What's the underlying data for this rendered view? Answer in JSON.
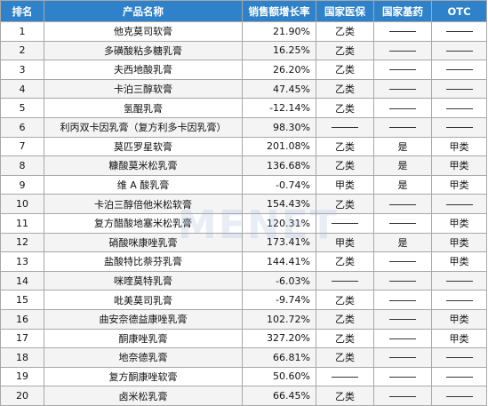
{
  "headers": [
    "排名",
    "产品名称",
    "销售额增长率",
    "国家医保",
    "国家基药",
    "OTC"
  ],
  "rows": [
    {
      "rank": "1",
      "name": "他克莫司软膏",
      "growth": "21.90%",
      "insurance": "乙类",
      "essential": "",
      "otc": ""
    },
    {
      "rank": "2",
      "name": "多磺酸粘多糖乳膏",
      "growth": "16.25%",
      "insurance": "乙类",
      "essential": "",
      "otc": ""
    },
    {
      "rank": "3",
      "name": "夫西地酸乳膏",
      "growth": "26.20%",
      "insurance": "乙类",
      "essential": "",
      "otc": ""
    },
    {
      "rank": "4",
      "name": "卡泊三醇软膏",
      "growth": "47.45%",
      "insurance": "乙类",
      "essential": "",
      "otc": ""
    },
    {
      "rank": "5",
      "name": "氢醌乳膏",
      "growth": "-12.14%",
      "insurance": "乙类",
      "essential": "",
      "otc": ""
    },
    {
      "rank": "6",
      "name": "利丙双卡因乳膏（复方利多卡因乳膏）",
      "growth": "98.30%",
      "insurance": "",
      "essential": "",
      "otc": ""
    },
    {
      "rank": "7",
      "name": "莫匹罗星软膏",
      "growth": "201.08%",
      "insurance": "乙类",
      "essential": "是",
      "otc": "甲类"
    },
    {
      "rank": "8",
      "name": "糠酸莫米松乳膏",
      "growth": "136.68%",
      "insurance": "乙类",
      "essential": "是",
      "otc": "甲类"
    },
    {
      "rank": "9",
      "name": "维 A 酸乳膏",
      "growth": "-0.74%",
      "insurance": "甲类",
      "essential": "是",
      "otc": "甲类"
    },
    {
      "rank": "10",
      "name": "卡泊三醇倍他米松软膏",
      "growth": "154.43%",
      "insurance": "乙类",
      "essential": "",
      "otc": ""
    },
    {
      "rank": "11",
      "name": "复方醋酸地塞米松乳膏",
      "growth": "120.31%",
      "insurance": "",
      "essential": "",
      "otc": "甲类"
    },
    {
      "rank": "12",
      "name": "硝酸咪康唑乳膏",
      "growth": "173.41%",
      "insurance": "甲类",
      "essential": "是",
      "otc": "甲类"
    },
    {
      "rank": "13",
      "name": "盐酸特比萘芬乳膏",
      "growth": "144.41%",
      "insurance": "乙类",
      "essential": "",
      "otc": "甲类"
    },
    {
      "rank": "14",
      "name": "咪喹莫特乳膏",
      "growth": "-6.03%",
      "insurance": "",
      "essential": "",
      "otc": ""
    },
    {
      "rank": "15",
      "name": "吡美莫司乳膏",
      "growth": "-9.74%",
      "insurance": "乙类",
      "essential": "",
      "otc": ""
    },
    {
      "rank": "16",
      "name": "曲安奈德益康唑乳膏",
      "growth": "102.72%",
      "insurance": "乙类",
      "essential": "",
      "otc": "甲类"
    },
    {
      "rank": "17",
      "name": "酮康唑乳膏",
      "growth": "327.20%",
      "insurance": "乙类",
      "essential": "",
      "otc": "甲类"
    },
    {
      "rank": "18",
      "name": "地奈德乳膏",
      "growth": "66.81%",
      "insurance": "乙类",
      "essential": "",
      "otc": ""
    },
    {
      "rank": "19",
      "name": "复方酮康唑软膏",
      "growth": "50.60%",
      "insurance": "",
      "essential": "",
      "otc": ""
    },
    {
      "rank": "20",
      "name": "卤米松乳膏",
      "growth": "66.45%",
      "insurance": "乙类",
      "essential": "",
      "otc": ""
    }
  ],
  "watermark": "MENET"
}
